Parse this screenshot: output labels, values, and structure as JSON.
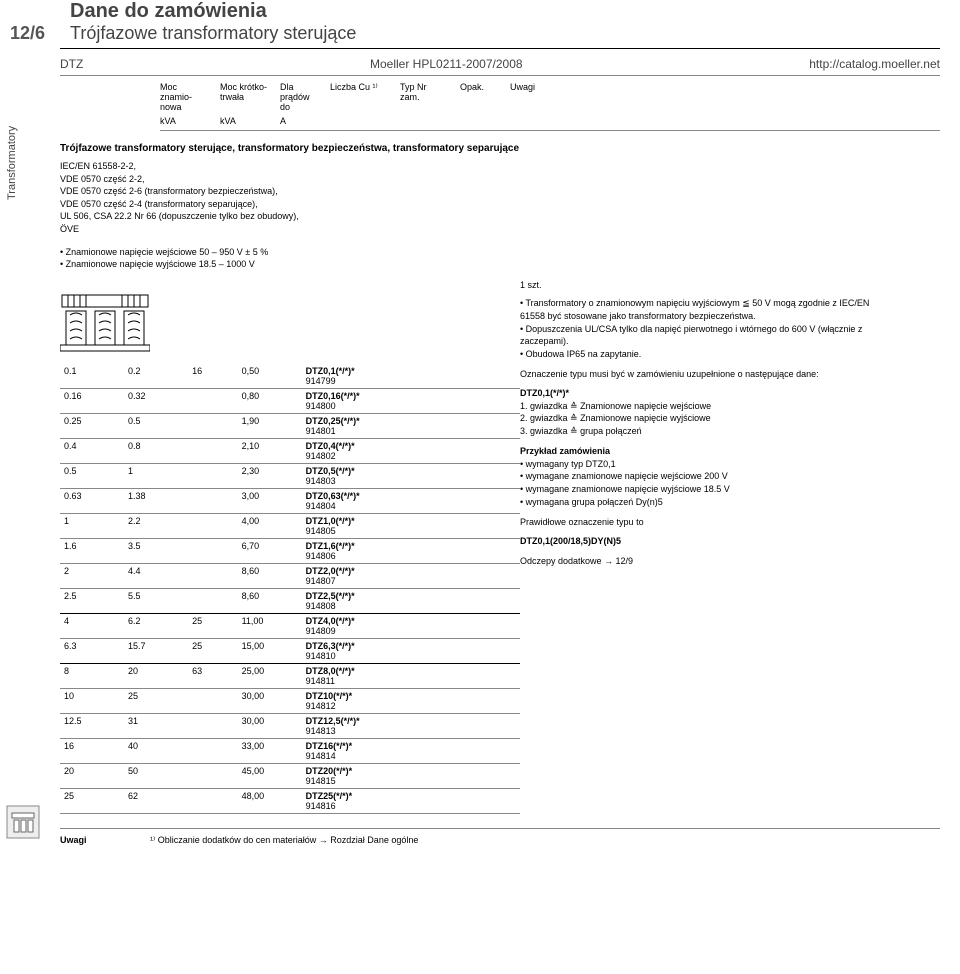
{
  "page_number": "12/6",
  "title": "Dane do zamówienia",
  "subtitle": "Trójfazowe transformatory sterujące",
  "line2_left": "DTZ",
  "line2_mid": "Moeller HPL0211-2007/2008",
  "line2_right": "http://catalog.moeller.net",
  "vertical_tab": "Transformatory",
  "headers": {
    "h1": "Moc znamio-nowa",
    "h2": "Moc krótko-trwała",
    "h3": "Dla prądów do",
    "h4": "Liczba Cu ¹⁾",
    "h5": "Typ Nr zam.",
    "h6": "Opak.",
    "h7": "Uwagi"
  },
  "units": {
    "u1": "kVA",
    "u2": "kVA",
    "u3": "A"
  },
  "section_title": "Trójfazowe transformatory sterujące, transformatory bezpieczeństwa, transformatory separujące",
  "standards": [
    "IEC/EN 61558-2-2,",
    "VDE 0570 część 2-2,",
    "VDE 0570 część 2-6 (transformatory bezpieczeństwa),",
    "VDE 0570 część 2-4 (transformatory separujące),",
    "UL 506, CSA 22.2 Nr 66 (dopuszczenie tylko bez obudowy),",
    "ÖVE"
  ],
  "bullets": [
    "Znamionowe napięcie wejściowe 50 – 950 V ± 5 %",
    "Znamionowe napięcie wyjściowe 18.5 – 1000 V"
  ],
  "szt": "1 szt.",
  "rows": [
    {
      "a": "0.1",
      "b": "0.2",
      "c": "16",
      "d": "0,50",
      "t": "DTZ0,1(*/*)*",
      "n": "914799"
    },
    {
      "a": "0.16",
      "b": "0.32",
      "c": "",
      "d": "0,80",
      "t": "DTZ0,16(*/*)*",
      "n": "914800"
    },
    {
      "a": "0.25",
      "b": "0.5",
      "c": "",
      "d": "1,90",
      "t": "DTZ0,25(*/*)*",
      "n": "914801"
    },
    {
      "a": "0.4",
      "b": "0.8",
      "c": "",
      "d": "2,10",
      "t": "DTZ0,4(*/*)*",
      "n": "914802"
    },
    {
      "a": "0.5",
      "b": "1",
      "c": "",
      "d": "2,30",
      "t": "DTZ0,5(*/*)*",
      "n": "914803"
    },
    {
      "a": "0.63",
      "b": "1.38",
      "c": "",
      "d": "3,00",
      "t": "DTZ0,63(*/*)*",
      "n": "914804"
    },
    {
      "a": "1",
      "b": "2.2",
      "c": "",
      "d": "4,00",
      "t": "DTZ1,0(*/*)*",
      "n": "914805"
    },
    {
      "a": "1.6",
      "b": "3.5",
      "c": "",
      "d": "6,70",
      "t": "DTZ1,6(*/*)*",
      "n": "914806"
    },
    {
      "a": "2",
      "b": "4.4",
      "c": "",
      "d": "8,60",
      "t": "DTZ2,0(*/*)*",
      "n": "914807"
    },
    {
      "a": "2.5",
      "b": "5.5",
      "c": "",
      "d": "8,60",
      "t": "DTZ2,5(*/*)*",
      "n": "914808",
      "gap": true
    },
    {
      "a": "4",
      "b": "6.2",
      "c": "25",
      "d": "11,00",
      "t": "DTZ4,0(*/*)*",
      "n": "914809"
    },
    {
      "a": "6.3",
      "b": "15.7",
      "c": "25",
      "d": "15,00",
      "t": "DTZ6,3(*/*)*",
      "n": "914810",
      "gap": true
    },
    {
      "a": "8",
      "b": "20",
      "c": "63",
      "d": "25,00",
      "t": "DTZ8,0(*/*)*",
      "n": "914811"
    },
    {
      "a": "10",
      "b": "25",
      "c": "",
      "d": "30,00",
      "t": "DTZ10(*/*)*",
      "n": "914812"
    },
    {
      "a": "12.5",
      "b": "31",
      "c": "",
      "d": "30,00",
      "t": "DTZ12,5(*/*)*",
      "n": "914813"
    },
    {
      "a": "16",
      "b": "40",
      "c": "",
      "d": "33,00",
      "t": "DTZ16(*/*)*",
      "n": "914814"
    },
    {
      "a": "20",
      "b": "50",
      "c": "",
      "d": "45,00",
      "t": "DTZ20(*/*)*",
      "n": "914815"
    },
    {
      "a": "25",
      "b": "62",
      "c": "",
      "d": "48,00",
      "t": "DTZ25(*/*)*",
      "n": "914816"
    }
  ],
  "right": {
    "b1": [
      "Transformatory o znamionowym napięciu wyjściowym ≦ 50 V mogą zgodnie z IEC/EN 61558 być stosowane jako transformatory bezpieczeństwa.",
      "Dopuszczenia UL/CSA tylko dla napięć pierwotnego i wtórnego do 600 V (włącznie z zaczepami).",
      "Obudowa IP65 na zapytanie."
    ],
    "ozn_head": "Oznaczenie typu musi być w zamówieniu uzupełnione o następujące dane:",
    "ozn_title": "DTZ0,1(*/*)*",
    "ozn_lines": [
      "1. gwiazdka ≙ Znamionowe napięcie wejściowe",
      "2. gwiazdka ≙ Znamionowe napięcie wyjściowe",
      "3. gwiazdka ≙ grupa połączeń"
    ],
    "ex_head": "Przykład zamówienia",
    "ex_lines": [
      "wymagany typ DTZ0,1",
      "wymagane znamionowe napięcie wejściowe 200 V",
      "wymagane znamionowe napięcie wyjściowe 18.5 V",
      "wymagana grupa połączeń Dy(n)5"
    ],
    "res1": "Prawidłowe oznaczenie typu to",
    "res2": "DTZ0,1(200/18,5)DY(N)5",
    "odcz": "Odczepy dodatkowe → 12/9"
  },
  "footer": {
    "lbl": "Uwagi",
    "txt": "¹⁾ Obliczanie dodatków do cen materiałów → Rozdział Dane ogólne"
  }
}
